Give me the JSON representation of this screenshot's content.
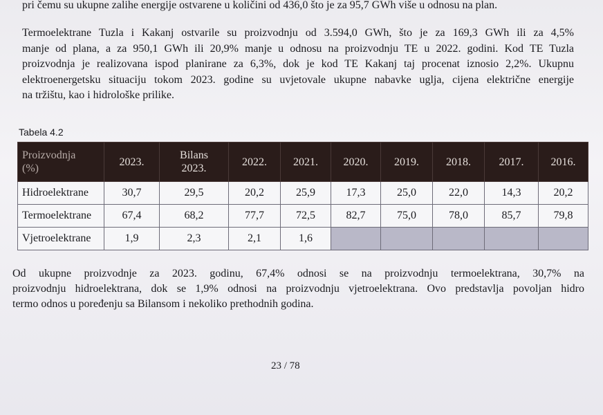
{
  "top_line": "pri čemu su ukupne zalihe energije ostvarene u količini od 436,0 što je za 95,7 GWh više u odnosu na plan.",
  "paragraph_1": [
    "Termoelektrane Tuzla i Kakanj ostvarile su proizvodnju od 3.594,0 GWh, što je za 169,3 GWh ili za 4,5%",
    "manje od plana, a za 950,1 GWh ili 20,9% manje u odnosu na proizvodnju TE u 2022. godini. Kod TE Tuzla",
    "proizvodnja je realizovana ispod planirane za 6,3%, dok je kod TE Kakanj taj procenat iznosio 2,2%. Ukupnu",
    "elektroenergetsku situaciju tokom 2023. godine su uvjetovale ukupne nabavke uglja, cijena električne energije",
    "na tržištu, kao i hidrološke prilike."
  ],
  "table": {
    "caption": "Tabela 4.2",
    "header": [
      "Proizvodnja\n(%)",
      "2023.",
      "Bilans\n2023.",
      "2022.",
      "2021.",
      "2020.",
      "2019.",
      "2018.",
      "2017.",
      "2016."
    ],
    "rows": [
      [
        "Hidroelektrane",
        "30,7",
        "29,5",
        "20,2",
        "25,9",
        "17,3",
        "25,0",
        "22,0",
        "14,3",
        "20,2"
      ],
      [
        "Termoelektrane",
        "67,4",
        "68,2",
        "77,7",
        "72,5",
        "82,7",
        "75,0",
        "78,0",
        "85,7",
        "79,8"
      ],
      [
        "Vjetroelektrane",
        "1,9",
        "2,3",
        "2,1",
        "1,6",
        null,
        null,
        null,
        null,
        null
      ]
    ]
  },
  "paragraph_2": [
    "Od ukupne proizvodnje za 2023. godinu, 67,4% odnosi se na proizvodnju termoelektrana, 30,7% na",
    "proizvodnju hidroelektrana, dok se 1,9% odnosi na proizvodnju vjetroelektrana. Ovo predstavlja povoljan hidro",
    "termo odnos u poređenju sa Bilansom i nekoliko prethodnih godina."
  ],
  "page_number": "23 / 78"
}
